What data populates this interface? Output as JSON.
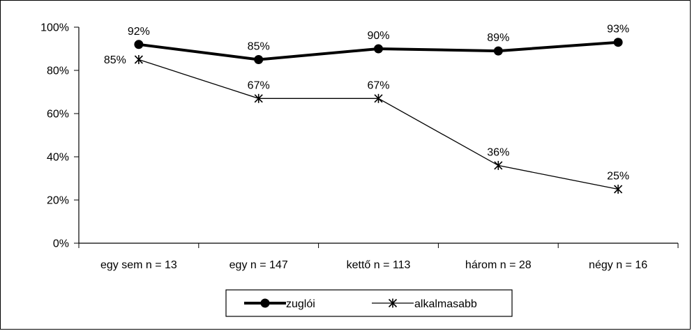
{
  "chart_data": {
    "type": "line",
    "categories": [
      "egy sem n = 13",
      "egy n = 147",
      "kettő n = 113",
      "három n = 28",
      "négy n = 16"
    ],
    "series": [
      {
        "name": "zuglói",
        "values": [
          92,
          85,
          90,
          89,
          93
        ],
        "labels": [
          "92%",
          "85%",
          "90%",
          "89%",
          "93%"
        ],
        "marker": "circle",
        "color": "#000000"
      },
      {
        "name": "alkalmasabb",
        "values": [
          85,
          67,
          67,
          36,
          25
        ],
        "labels": [
          "85%",
          "67%",
          "67%",
          "36%",
          "25%"
        ],
        "marker": "asterisk",
        "color": "#000000"
      }
    ],
    "y_ticks": [
      "0%",
      "20%",
      "40%",
      "60%",
      "80%",
      "100%"
    ],
    "ylim": [
      0,
      100
    ],
    "grid": false,
    "legend_position": "bottom"
  }
}
